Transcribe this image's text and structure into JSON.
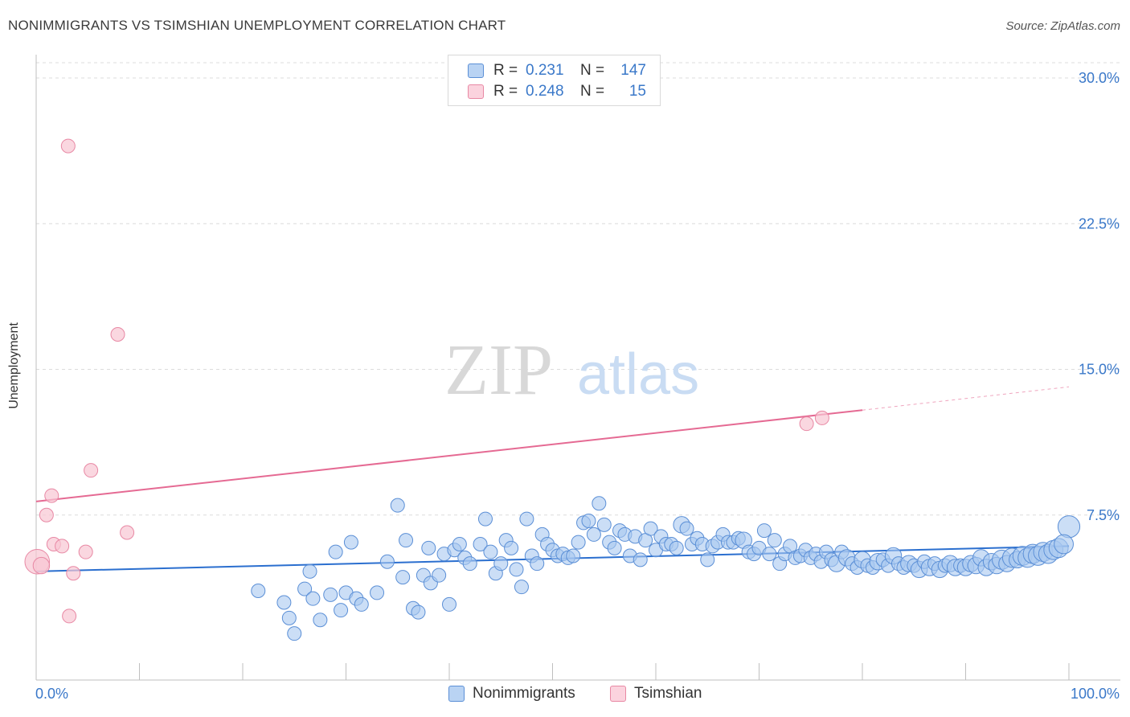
{
  "title": "NONIMMIGRANTS VS TSIMSHIAN UNEMPLOYMENT CORRELATION CHART",
  "source": "Source: ZipAtlas.com",
  "watermark": {
    "zip": "ZIP",
    "atlas": "atlas"
  },
  "colors": {
    "blue_fill": "#a9c8f0",
    "blue_stroke": "#5b8fd6",
    "blue_line": "#2b6fcf",
    "pink_fill": "#f8c6d3",
    "pink_stroke": "#e888a4",
    "pink_line": "#e56a93",
    "axis_label": "#3a78c9"
  },
  "legend": {
    "rows": [
      {
        "series": "Nonimmigrants",
        "r_label": "R =",
        "r_value": "0.231",
        "n_label": "N =",
        "n_value": "147"
      },
      {
        "series": "Tsimshian",
        "r_label": "R =",
        "r_value": "0.248",
        "n_label": "N =",
        "n_value": "15"
      }
    ]
  },
  "bottom_legend": [
    "Nonimmigrants",
    "Tsimshian"
  ],
  "chart_data": {
    "type": "scatter",
    "title": "NONIMMIGRANTS VS TSIMSHIAN UNEMPLOYMENT CORRELATION CHART",
    "xlabel": "",
    "ylabel": "Unemployment",
    "xlim": [
      0,
      100
    ],
    "ylim": [
      0,
      30
    ],
    "x_tick_labels": [
      "0.0%",
      "100.0%"
    ],
    "y_ticks": [
      7.5,
      15.0,
      22.5,
      30.0
    ],
    "y_tick_labels": [
      "7.5%",
      "15.0%",
      "22.5%",
      "30.0%"
    ],
    "grid": true,
    "series": [
      {
        "name": "Nonimmigrants",
        "color": "#a9c8f0",
        "trend": {
          "x0": 0,
          "y0": 4.6,
          "x1": 100,
          "y1": 5.9
        },
        "points": [
          [
            21.5,
            3.6,
            5
          ],
          [
            24.0,
            3.0,
            5
          ],
          [
            24.5,
            2.2,
            5
          ],
          [
            25.0,
            1.4,
            5
          ],
          [
            26.0,
            3.7,
            5
          ],
          [
            26.5,
            4.6,
            5
          ],
          [
            26.8,
            3.2,
            5
          ],
          [
            27.5,
            2.1,
            5
          ],
          [
            28.5,
            3.4,
            5
          ],
          [
            29.0,
            5.6,
            5
          ],
          [
            29.5,
            2.6,
            5
          ],
          [
            30.0,
            3.5,
            5
          ],
          [
            30.5,
            6.1,
            5
          ],
          [
            31.0,
            3.2,
            5
          ],
          [
            31.5,
            2.9,
            5
          ],
          [
            33.0,
            3.5,
            5
          ],
          [
            34.0,
            5.1,
            5
          ],
          [
            35.0,
            8.0,
            5
          ],
          [
            35.5,
            4.3,
            5
          ],
          [
            35.8,
            6.2,
            5
          ],
          [
            36.5,
            2.7,
            5
          ],
          [
            37.0,
            2.5,
            5
          ],
          [
            37.5,
            4.4,
            5
          ],
          [
            38.0,
            5.8,
            5
          ],
          [
            38.2,
            4.0,
            5
          ],
          [
            39.0,
            4.4,
            5
          ],
          [
            39.5,
            5.5,
            5
          ],
          [
            40.0,
            2.9,
            5
          ],
          [
            40.5,
            5.7,
            5
          ],
          [
            41.0,
            6.0,
            5
          ],
          [
            41.5,
            5.3,
            5
          ],
          [
            42.0,
            5.0,
            5
          ],
          [
            43.0,
            6.0,
            5
          ],
          [
            43.5,
            7.3,
            5
          ],
          [
            44.0,
            5.6,
            5
          ],
          [
            44.5,
            4.5,
            5
          ],
          [
            45.0,
            5.0,
            5
          ],
          [
            45.5,
            6.2,
            5
          ],
          [
            46.0,
            5.8,
            5
          ],
          [
            46.5,
            4.7,
            5
          ],
          [
            47.0,
            3.8,
            5
          ],
          [
            47.5,
            7.3,
            5
          ],
          [
            48.0,
            5.4,
            5
          ],
          [
            48.5,
            5.0,
            5
          ],
          [
            49.0,
            6.5,
            5
          ],
          [
            49.5,
            6.0,
            5
          ],
          [
            50.0,
            5.7,
            5
          ],
          [
            50.5,
            5.4,
            5
          ],
          [
            51.0,
            5.5,
            5
          ],
          [
            51.5,
            5.3,
            5
          ],
          [
            52.0,
            5.4,
            5
          ],
          [
            52.5,
            6.1,
            5
          ],
          [
            53.0,
            7.1,
            5
          ],
          [
            53.5,
            7.2,
            5
          ],
          [
            54.0,
            6.5,
            5
          ],
          [
            54.5,
            8.1,
            5
          ],
          [
            55.0,
            7.0,
            5
          ],
          [
            55.5,
            6.1,
            5
          ],
          [
            56.0,
            5.8,
            5
          ],
          [
            56.5,
            6.7,
            5
          ],
          [
            57.0,
            6.5,
            5
          ],
          [
            57.5,
            5.4,
            5
          ],
          [
            58.0,
            6.4,
            5
          ],
          [
            58.5,
            5.2,
            5
          ],
          [
            59.0,
            6.2,
            5
          ],
          [
            59.5,
            6.8,
            5
          ],
          [
            60.0,
            5.7,
            5
          ],
          [
            60.5,
            6.4,
            5
          ],
          [
            61.0,
            6.0,
            5
          ],
          [
            61.5,
            6.0,
            5
          ],
          [
            62.0,
            5.8,
            5
          ],
          [
            62.5,
            7.0,
            6
          ],
          [
            63.0,
            6.8,
            5
          ],
          [
            63.5,
            6.0,
            5
          ],
          [
            64.0,
            6.3,
            5
          ],
          [
            64.5,
            6.0,
            5
          ],
          [
            65.0,
            5.2,
            5
          ],
          [
            65.5,
            5.9,
            5
          ],
          [
            66.0,
            6.1,
            5
          ],
          [
            66.5,
            6.5,
            5
          ],
          [
            67.0,
            6.1,
            5
          ],
          [
            67.5,
            6.1,
            5
          ],
          [
            68.0,
            6.3,
            5
          ],
          [
            68.5,
            6.2,
            6
          ],
          [
            69.0,
            5.6,
            5
          ],
          [
            69.5,
            5.5,
            5
          ],
          [
            70.0,
            5.8,
            5
          ],
          [
            70.5,
            6.7,
            5
          ],
          [
            71.0,
            5.5,
            5
          ],
          [
            71.5,
            6.2,
            5
          ],
          [
            72.0,
            5.0,
            5
          ],
          [
            72.5,
            5.5,
            5
          ],
          [
            73.0,
            5.9,
            5
          ],
          [
            73.5,
            5.3,
            5
          ],
          [
            74.0,
            5.4,
            5
          ],
          [
            74.5,
            5.7,
            5
          ],
          [
            75.0,
            5.3,
            5
          ],
          [
            75.5,
            5.5,
            5
          ],
          [
            76.0,
            5.1,
            5
          ],
          [
            76.5,
            5.6,
            5
          ],
          [
            77.0,
            5.2,
            5
          ],
          [
            77.5,
            5.0,
            6
          ],
          [
            78.0,
            5.6,
            5
          ],
          [
            78.5,
            5.3,
            6
          ],
          [
            79.0,
            5.0,
            5
          ],
          [
            79.5,
            4.8,
            5
          ],
          [
            80.0,
            5.2,
            6
          ],
          [
            80.5,
            4.9,
            5
          ],
          [
            81.0,
            4.8,
            5
          ],
          [
            81.5,
            5.1,
            6
          ],
          [
            82.0,
            5.2,
            5
          ],
          [
            82.5,
            4.9,
            5
          ],
          [
            83.0,
            5.4,
            6
          ],
          [
            83.5,
            5.0,
            5
          ],
          [
            84.0,
            4.8,
            5
          ],
          [
            84.5,
            5.0,
            6
          ],
          [
            85.0,
            4.9,
            5
          ],
          [
            85.5,
            4.7,
            6
          ],
          [
            86.0,
            5.1,
            5
          ],
          [
            86.5,
            4.8,
            6
          ],
          [
            87.0,
            5.0,
            5
          ],
          [
            87.5,
            4.7,
            6
          ],
          [
            88.0,
            4.9,
            5
          ],
          [
            88.5,
            5.0,
            6
          ],
          [
            89.0,
            4.8,
            6
          ],
          [
            89.5,
            4.9,
            5
          ],
          [
            90.0,
            4.8,
            6
          ],
          [
            90.5,
            5.0,
            6
          ],
          [
            91.0,
            4.9,
            6
          ],
          [
            91.5,
            5.3,
            6
          ],
          [
            92.0,
            4.8,
            6
          ],
          [
            92.5,
            5.1,
            6
          ],
          [
            93.0,
            4.9,
            6
          ],
          [
            93.5,
            5.2,
            7
          ],
          [
            94.0,
            5.0,
            6
          ],
          [
            94.5,
            5.3,
            7
          ],
          [
            95.0,
            5.2,
            6
          ],
          [
            95.5,
            5.4,
            7
          ],
          [
            96.0,
            5.3,
            7
          ],
          [
            96.5,
            5.5,
            7
          ],
          [
            97.0,
            5.4,
            7
          ],
          [
            97.5,
            5.6,
            7
          ],
          [
            98.0,
            5.5,
            7
          ],
          [
            98.5,
            5.7,
            7
          ],
          [
            100.0,
            6.9,
            8
          ],
          [
            99.0,
            5.8,
            7
          ],
          [
            99.5,
            6.0,
            7
          ]
        ]
      },
      {
        "name": "Tsimshian",
        "color": "#f8c6d3",
        "trend": {
          "x0": 0,
          "y0": 8.2,
          "x1": 80,
          "y1": 12.9,
          "dash_to_x": 100,
          "dash_to_y": 14.1
        },
        "points": [
          [
            0.1,
            5.1,
            9
          ],
          [
            0.5,
            4.9,
            6
          ],
          [
            1.0,
            7.5,
            5
          ],
          [
            1.5,
            8.5,
            5
          ],
          [
            1.7,
            6.0,
            5
          ],
          [
            2.5,
            5.9,
            5
          ],
          [
            3.1,
            26.5,
            5
          ],
          [
            3.2,
            2.3,
            5
          ],
          [
            3.6,
            4.5,
            5
          ],
          [
            4.8,
            5.6,
            5
          ],
          [
            5.3,
            9.8,
            5
          ],
          [
            7.9,
            16.8,
            5
          ],
          [
            8.8,
            6.6,
            5
          ],
          [
            74.6,
            12.2,
            5
          ],
          [
            76.1,
            12.5,
            5
          ]
        ]
      }
    ]
  }
}
